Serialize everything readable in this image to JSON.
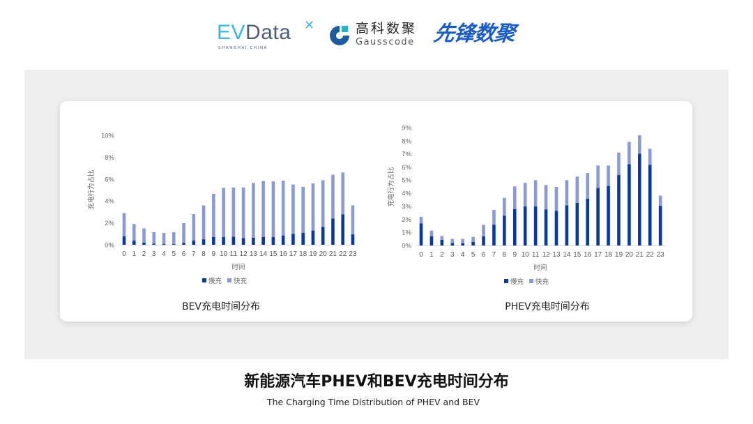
{
  "logos": {
    "evdata": {
      "text_e": "EV",
      "text_d": "Data",
      "sub": "SHANGHAI CHINA"
    },
    "gausscode": {
      "cn": "高科数聚",
      "en": "Gausscode"
    },
    "xianfeng": {
      "text": "先锋数聚"
    }
  },
  "colors": {
    "slow": "#0a38a0",
    "fast": "#8b99d6",
    "panel": "#efefef"
  },
  "title": "新能源汽车PHEV和BEV充电时间分布",
  "subtitle": "The Charging Time Distribution of PHEV and BEV",
  "chart_data": [
    {
      "type": "bar",
      "stacked": true,
      "title": "BEV充电时间分布",
      "xlabel": "时间",
      "ylabel": "充电行为占比",
      "categories": [
        "0",
        "1",
        "2",
        "3",
        "4",
        "5",
        "6",
        "7",
        "8",
        "9",
        "10",
        "11",
        "12",
        "13",
        "14",
        "15",
        "16",
        "17",
        "18",
        "19",
        "20",
        "21",
        "22",
        "23"
      ],
      "yticks": [
        "0%",
        "2%",
        "4%",
        "6%",
        "8%",
        "10%"
      ],
      "ylim": [
        0,
        10
      ],
      "unit": "%",
      "legend": [
        "慢充",
        "快充"
      ],
      "legend_position": "bottom",
      "grid": false,
      "series": [
        {
          "name": "慢充",
          "values": [
            0.78,
            0.38,
            0.2,
            0.1,
            0.08,
            0.06,
            0.17,
            0.38,
            0.5,
            0.72,
            0.7,
            0.74,
            0.62,
            0.64,
            0.72,
            0.72,
            0.85,
            1.0,
            1.1,
            1.3,
            1.63,
            2.4,
            2.78,
            0.95
          ]
        },
        {
          "name": "快充",
          "values": [
            2.12,
            1.52,
            1.3,
            1.05,
            1.0,
            1.09,
            1.8,
            2.42,
            3.1,
            3.93,
            4.5,
            4.49,
            4.61,
            5.01,
            5.11,
            5.08,
            5.0,
            4.5,
            4.2,
            4.3,
            4.27,
            4.0,
            3.82,
            2.65
          ]
        }
      ]
    },
    {
      "type": "bar",
      "stacked": true,
      "title": "PHEV充电时间分布",
      "xlabel": "时间",
      "ylabel": "充电行为占比",
      "categories": [
        "0",
        "1",
        "2",
        "3",
        "4",
        "5",
        "6",
        "7",
        "8",
        "9",
        "10",
        "11",
        "12",
        "13",
        "14",
        "15",
        "16",
        "17",
        "18",
        "19",
        "20",
        "21",
        "22",
        "23"
      ],
      "yticks": [
        "0%",
        "1%",
        "2%",
        "3%",
        "4%",
        "5%",
        "6%",
        "7%",
        "8%",
        "9%"
      ],
      "ylim": [
        0,
        9
      ],
      "unit": "%",
      "legend": [
        "慢充",
        "快充"
      ],
      "legend_position": "bottom",
      "grid": false,
      "series": [
        {
          "name": "慢充",
          "values": [
            1.69,
            0.71,
            0.43,
            0.18,
            0.18,
            0.27,
            0.7,
            1.59,
            2.28,
            2.78,
            2.98,
            2.98,
            2.76,
            2.64,
            3.07,
            3.26,
            3.58,
            4.39,
            4.55,
            5.38,
            6.2,
            7.0,
            6.15,
            3.03
          ]
        },
        {
          "name": "快充",
          "values": [
            0.5,
            0.43,
            0.3,
            0.32,
            0.32,
            0.39,
            0.87,
            1.12,
            1.36,
            1.73,
            1.8,
            2.01,
            1.86,
            1.83,
            1.92,
            2.0,
            1.95,
            1.72,
            1.56,
            1.71,
            1.71,
            1.41,
            1.23,
            0.78
          ]
        }
      ]
    }
  ]
}
